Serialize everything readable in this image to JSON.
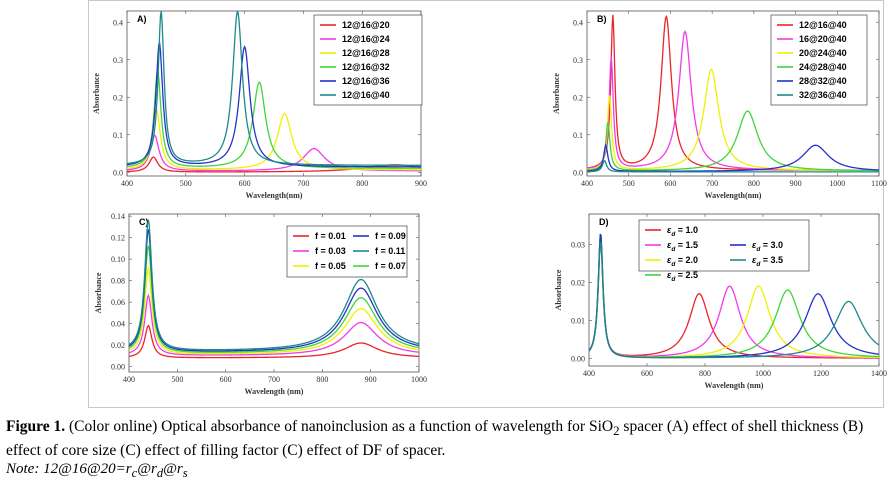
{
  "colors": {
    "red": "#e8262b",
    "magenta": "#f03ce8",
    "yellow": "#f2f000",
    "green": "#3ed63a",
    "blue": "#2632c8",
    "teal": "#1c8a8a"
  },
  "caption": {
    "figure_label": "Figure 1.",
    "text": " (Color online) Optical absorbance of nanoinclusion as a function of wavelength for SiO",
    "sub": "2",
    "text2": " spacer (A) effect of shell thickness (B) effect of core size (C) effect of filling factor (C) effect of DF of spacer.",
    "note": "Note: 12@16@20=r",
    "note_c": "c",
    "note_at1": "@r",
    "note_d": "d",
    "note_at2": "@r",
    "note_s": "s"
  },
  "chart_data": [
    {
      "panel": "A)",
      "type": "line",
      "xlabel": "Wavelength(nm)",
      "ylabel": "Absorbance",
      "xlim": [
        400,
        900
      ],
      "ylim": [
        -0.01,
        0.43
      ],
      "xticks": [
        400,
        500,
        600,
        700,
        800,
        900
      ],
      "yticks": [
        0.0,
        0.1,
        0.2,
        0.3,
        0.4
      ],
      "ytick_labels": [
        "0.0",
        "0.1",
        "0.2",
        "0.3",
        "0.4"
      ],
      "legend": "top-right",
      "series": [
        {
          "name": "12@16@20",
          "color_key": "red",
          "peaks": [
            [
              445,
              0.04,
              9
            ],
            [
              855,
              0.02,
              60
            ]
          ],
          "base": 0.0
        },
        {
          "name": "12@16@24",
          "color_key": "magenta",
          "peaks": [
            [
              447,
              0.095,
              9
            ],
            [
              718,
              0.06,
              22
            ]
          ],
          "base": 0.003
        },
        {
          "name": "12@16@28",
          "color_key": "yellow",
          "peaks": [
            [
              450,
              0.16,
              8
            ],
            [
              668,
              0.15,
              15
            ]
          ],
          "base": 0.006
        },
        {
          "name": "12@16@32",
          "color_key": "green",
          "peaks": [
            [
              452,
              0.26,
              7
            ],
            [
              625,
              0.23,
              13
            ]
          ],
          "base": 0.01
        },
        {
          "name": "12@16@36",
          "color_key": "blue",
          "peaks": [
            [
              455,
              0.33,
              7
            ],
            [
              600,
              0.32,
              11
            ]
          ],
          "base": 0.014
        },
        {
          "name": "12@16@40",
          "color_key": "teal",
          "peaks": [
            [
              458,
              0.41,
              6
            ],
            [
              588,
              0.41,
              10
            ]
          ],
          "base": 0.018
        }
      ]
    },
    {
      "panel": "B)",
      "type": "line",
      "xlabel": "Wavelength(nm)",
      "ylabel": "Absorbance",
      "xlim": [
        400,
        1100
      ],
      "ylim": [
        -0.01,
        0.43
      ],
      "xticks": [
        400,
        500,
        600,
        700,
        800,
        900,
        1000,
        1100
      ],
      "yticks": [
        0.0,
        0.1,
        0.2,
        0.3,
        0.4
      ],
      "ytick_labels": [
        "0.0",
        "0.1",
        "0.2",
        "0.3",
        "0.4"
      ],
      "legend": "top-right",
      "series": [
        {
          "name": "12@16@40",
          "color_key": "red",
          "peaks": [
            [
              462,
              0.41,
              6
            ],
            [
              590,
              0.41,
              15
            ]
          ],
          "base": 0.005
        },
        {
          "name": "16@20@40",
          "color_key": "magenta",
          "peaks": [
            [
              458,
              0.3,
              6
            ],
            [
              635,
              0.37,
              18
            ]
          ],
          "base": 0.005
        },
        {
          "name": "20@24@40",
          "color_key": "yellow",
          "peaks": [
            [
              454,
              0.2,
              6
            ],
            [
              698,
              0.27,
              22
            ]
          ],
          "base": 0.004
        },
        {
          "name": "24@28@40",
          "color_key": "green",
          "peaks": [
            [
              450,
              0.13,
              6
            ],
            [
              785,
              0.16,
              30
            ]
          ],
          "base": 0.003
        },
        {
          "name": "28@32@40",
          "color_key": "blue",
          "peaks": [
            [
              445,
              0.07,
              6
            ],
            [
              948,
              0.07,
              38
            ]
          ],
          "base": 0.002
        },
        {
          "name": "32@36@40",
          "color_key": "teal",
          "peaks": [
            [
              442,
              0.03,
              6
            ]
          ],
          "base": 0.001
        }
      ]
    },
    {
      "panel": "C)",
      "type": "line",
      "xlabel": "Wavelength (nm)",
      "ylabel": "Absorbance",
      "xlim": [
        400,
        1000
      ],
      "ylim": [
        -0.005,
        0.142
      ],
      "xticks": [
        400,
        500,
        600,
        700,
        800,
        900,
        1000
      ],
      "yticks": [
        0.0,
        0.02,
        0.04,
        0.06,
        0.08,
        0.1,
        0.12,
        0.14
      ],
      "ytick_labels": [
        "0.00",
        "0.02",
        "0.04",
        "0.06",
        "0.08",
        "0.10",
        "0.12",
        "0.14"
      ],
      "legend": "top-center",
      "series": [
        {
          "name": "f = 0.01",
          "color_key": "red",
          "peaks": [
            [
              440,
              0.03,
              9
            ],
            [
              880,
              0.014,
              42
            ]
          ],
          "base": 0.008
        },
        {
          "name": "f = 0.03",
          "color_key": "magenta",
          "peaks": [
            [
              440,
              0.056,
              9
            ],
            [
              880,
              0.031,
              42
            ]
          ],
          "base": 0.01
        },
        {
          "name": "f = 0.05",
          "color_key": "yellow",
          "peaks": [
            [
              440,
              0.08,
              9
            ],
            [
              880,
              0.043,
              42
            ]
          ],
          "base": 0.011
        },
        {
          "name": "f = 0.07",
          "color_key": "green",
          "peaks": [
            [
              440,
              0.1,
              9
            ],
            [
              880,
              0.052,
              42
            ]
          ],
          "base": 0.012
        },
        {
          "name": "f = 0.09",
          "color_key": "blue",
          "peaks": [
            [
              440,
              0.114,
              9
            ],
            [
              880,
              0.06,
              42
            ]
          ],
          "base": 0.013
        },
        {
          "name": "f = 0.11",
          "color_key": "teal",
          "peaks": [
            [
              440,
              0.122,
              9
            ],
            [
              880,
              0.067,
              42
            ]
          ],
          "base": 0.014
        }
      ],
      "legend_order": [
        0,
        4,
        1,
        5,
        2,
        3
      ]
    },
    {
      "panel": "D)",
      "type": "line",
      "xlabel": "Wavelength (nm)",
      "ylabel": "Absorbance",
      "xlim": [
        400,
        1400
      ],
      "ylim": [
        -0.002,
        0.038
      ],
      "xticks": [
        400,
        600,
        800,
        1000,
        1200,
        1400
      ],
      "yticks": [
        0.0,
        0.01,
        0.02,
        0.03
      ],
      "ytick_labels": [
        "0.00",
        "0.01",
        "0.02",
        "0.03"
      ],
      "legend": "top-center",
      "series": [
        {
          "name": "εd = 1.0",
          "color_key": "red",
          "peaks": [
            [
              440,
              0.031,
              10
            ],
            [
              780,
              0.017,
              42
            ]
          ],
          "base": 0.0
        },
        {
          "name": "εd = 1.5",
          "color_key": "magenta",
          "peaks": [
            [
              440,
              0.032,
              10
            ],
            [
              885,
              0.019,
              45
            ]
          ],
          "base": 0.0
        },
        {
          "name": "εd = 2.0",
          "color_key": "yellow",
          "peaks": [
            [
              440,
              0.033,
              10
            ],
            [
              985,
              0.019,
              48
            ]
          ],
          "base": 0.0
        },
        {
          "name": "εd = 2.5",
          "color_key": "green",
          "peaks": [
            [
              440,
              0.033,
              10
            ],
            [
              1085,
              0.018,
              52
            ]
          ],
          "base": 0.0
        },
        {
          "name": "εd = 3.0",
          "color_key": "blue",
          "peaks": [
            [
              440,
              0.033,
              10
            ],
            [
              1190,
              0.017,
              55
            ]
          ],
          "base": 0.0
        },
        {
          "name": "εd = 3.5",
          "color_key": "teal",
          "peaks": [
            [
              440,
              0.031,
              10
            ],
            [
              1295,
              0.015,
              58
            ]
          ],
          "base": 0.0
        }
      ],
      "legend_symbol": "ε",
      "legend_sub": "d",
      "legend_values": [
        "= 1.0",
        "= 1.5",
        "= 2.0",
        "= 2.5",
        "= 3.0",
        "= 3.5"
      ]
    }
  ]
}
